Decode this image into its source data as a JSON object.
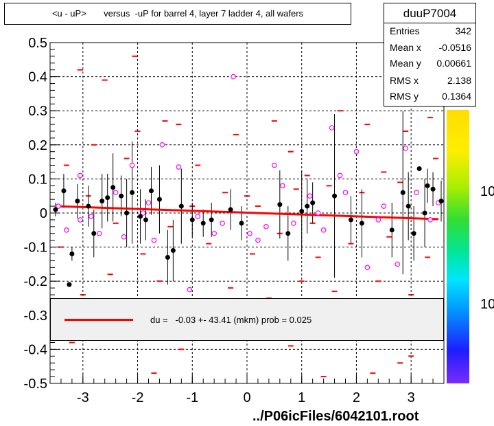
{
  "title": "<u - uP>       versus  -uP for barrel 4, layer 7 ladder 4, all wafers",
  "stats": {
    "name": "duuP7004",
    "rows": [
      {
        "label": "Entries",
        "value": "342"
      },
      {
        "label": "Mean x",
        "value": "-0.0516"
      },
      {
        "label": "Mean y",
        "value": "0.00661"
      },
      {
        "label": "RMS x",
        "value": "2.138"
      },
      {
        "label": "RMS y",
        "value": "0.1364"
      }
    ]
  },
  "legend": {
    "text": "du =   -0.03 +- 43.41 (mkm) prob = 0.025",
    "color": "#ff0000"
  },
  "footer": "../P06icFiles/6042101.root",
  "colors": {
    "profile": "#000000",
    "hist": "#ff0000",
    "markers": "#ff00ff",
    "fit": "#ff0000"
  },
  "colorbar_labels": [
    "10",
    "10"
  ],
  "chart_data": {
    "type": "scatter",
    "title": "<u - uP>       versus  -uP for barrel 4, layer 7 ladder 4, all wafers",
    "xlim": [
      -3.6,
      3.6
    ],
    "ylim": [
      -0.5,
      0.5
    ],
    "x_ticks": [
      "-3",
      "-2",
      "-1",
      "0",
      "1",
      "2",
      "3"
    ],
    "y_ticks": [
      "-0.5",
      "-0.4",
      "-0.3",
      "-0.2",
      "-0.1",
      "0",
      "0.1",
      "0.2",
      "0.3",
      "0.4",
      "0.5"
    ],
    "grid": true,
    "fit_line": {
      "x": [
        -3.5,
        3.5
      ],
      "y": [
        0.02,
        -0.018
      ]
    },
    "profile_points": [
      {
        "x": -3.5,
        "y": 0.01,
        "e": 0.02
      },
      {
        "x": -3.35,
        "y": 0.065,
        "e": 0.05
      },
      {
        "x": -3.25,
        "y": -0.21,
        "e": 0.0
      },
      {
        "x": -3.2,
        "y": -0.12,
        "e": 0.02
      },
      {
        "x": -3.1,
        "y": 0.035,
        "e": 0.05
      },
      {
        "x": -2.9,
        "y": 0.02,
        "e": 0.06
      },
      {
        "x": -2.8,
        "y": -0.06,
        "e": 0.07
      },
      {
        "x": -2.65,
        "y": 0.035,
        "e": 0.08
      },
      {
        "x": -2.55,
        "y": 0.045,
        "e": 0.07
      },
      {
        "x": -2.45,
        "y": 0.075,
        "e": 0.1
      },
      {
        "x": -2.3,
        "y": 0.05,
        "e": 0.06
      },
      {
        "x": -2.2,
        "y": 0.0,
        "e": 0.1
      },
      {
        "x": -2.1,
        "y": 0.06,
        "e": 0.15
      },
      {
        "x": -1.95,
        "y": -0.01,
        "e": 0.08
      },
      {
        "x": -1.85,
        "y": -0.02,
        "e": 0.06
      },
      {
        "x": -1.75,
        "y": 0.065,
        "e": 0.07
      },
      {
        "x": -1.6,
        "y": 0.04,
        "e": 0.1
      },
      {
        "x": -1.45,
        "y": -0.13,
        "e": 0.08
      },
      {
        "x": -1.35,
        "y": -0.11,
        "e": 0.09
      },
      {
        "x": -1.2,
        "y": 0.02,
        "e": 0.11
      },
      {
        "x": -1.0,
        "y": -0.02,
        "e": 0.05
      },
      {
        "x": -0.8,
        "y": -0.03,
        "e": 0.04
      },
      {
        "x": -0.65,
        "y": -0.02,
        "e": 0.05
      },
      {
        "x": -0.3,
        "y": 0.01,
        "e": 0.06
      },
      {
        "x": -0.1,
        "y": -0.03,
        "e": 0.05
      },
      {
        "x": 0.6,
        "y": 0.025,
        "e": 0.1
      },
      {
        "x": 0.75,
        "y": -0.06,
        "e": 0.08
      },
      {
        "x": 1.0,
        "y": 0.005,
        "e": 0.12
      },
      {
        "x": 1.1,
        "y": 0.02,
        "e": 0.08
      },
      {
        "x": 1.2,
        "y": 0.03,
        "e": 0.06
      },
      {
        "x": 1.6,
        "y": 0.05,
        "e": 0.24
      },
      {
        "x": 1.9,
        "y": -0.02,
        "e": 0.07
      },
      {
        "x": 2.1,
        "y": -0.03,
        "e": 0.1
      },
      {
        "x": 2.65,
        "y": -0.05,
        "e": 0.08
      },
      {
        "x": 2.85,
        "y": 0.06,
        "e": 0.24
      },
      {
        "x": 2.95,
        "y": 0.02,
        "e": 0.1
      },
      {
        "x": 3.05,
        "y": -0.06,
        "e": 0.08
      },
      {
        "x": 3.15,
        "y": 0.13,
        "e": 0.0
      },
      {
        "x": 3.25,
        "y": 0.0,
        "e": 0.1
      },
      {
        "x": 3.3,
        "y": 0.08,
        "e": 0.05
      },
      {
        "x": 3.4,
        "y": 0.07,
        "e": 0.05
      },
      {
        "x": 3.55,
        "y": 0.035,
        "e": 0.06
      }
    ],
    "open_markers": [
      {
        "x": -3.45,
        "y": 0.02
      },
      {
        "x": -3.3,
        "y": -0.05
      },
      {
        "x": -3.05,
        "y": 0.11
      },
      {
        "x": -3.05,
        "y": -0.02
      },
      {
        "x": -2.85,
        "y": -0.01
      },
      {
        "x": -2.7,
        "y": -0.06
      },
      {
        "x": -2.4,
        "y": 0.06
      },
      {
        "x": -2.25,
        "y": -0.07
      },
      {
        "x": -2.1,
        "y": 0.14
      },
      {
        "x": -1.9,
        "y": 0.0
      },
      {
        "x": -1.8,
        "y": 0.03
      },
      {
        "x": -1.7,
        "y": -0.08
      },
      {
        "x": -1.55,
        "y": 0.2
      },
      {
        "x": -1.25,
        "y": 0.135
      },
      {
        "x": -1.05,
        "y": -0.225
      },
      {
        "x": -0.9,
        "y": -0.01
      },
      {
        "x": -0.6,
        "y": -0.06
      },
      {
        "x": -0.45,
        "y": -0.03
      },
      {
        "x": -0.25,
        "y": 0.4
      },
      {
        "x": 0.05,
        "y": -0.06
      },
      {
        "x": 0.2,
        "y": -0.08
      },
      {
        "x": 0.35,
        "y": -0.04
      },
      {
        "x": 0.5,
        "y": 0.14
      },
      {
        "x": 0.65,
        "y": 0.08
      },
      {
        "x": 0.85,
        "y": -0.03
      },
      {
        "x": 1.15,
        "y": 0.05
      },
      {
        "x": 1.3,
        "y": 0.0
      },
      {
        "x": 1.4,
        "y": -0.05
      },
      {
        "x": 1.55,
        "y": 0.25
      },
      {
        "x": 1.7,
        "y": 0.11
      },
      {
        "x": 1.8,
        "y": 0.06
      },
      {
        "x": 2.0,
        "y": 0.18
      },
      {
        "x": 2.2,
        "y": -0.16
      },
      {
        "x": 2.4,
        "y": -0.02
      },
      {
        "x": 2.5,
        "y": 0.02
      },
      {
        "x": 2.75,
        "y": -0.15
      },
      {
        "x": 2.9,
        "y": 0.19
      },
      {
        "x": 3.1,
        "y": 0.06
      },
      {
        "x": 3.35,
        "y": -0.02
      },
      {
        "x": 3.5,
        "y": 0.03
      }
    ],
    "hist_marks": [
      {
        "x": -2.05,
        "y": 0.46
      },
      {
        "x": -3.05,
        "y": 0.42
      },
      {
        "x": -2.6,
        "y": 0.39
      },
      {
        "x": -1.5,
        "y": 0.27
      },
      {
        "x": -2.0,
        "y": 0.24
      },
      {
        "x": -1.25,
        "y": 0.26
      },
      {
        "x": -2.8,
        "y": 0.2
      },
      {
        "x": -0.9,
        "y": 0.14
      },
      {
        "x": -0.2,
        "y": 0.23
      },
      {
        "x": 0.5,
        "y": 0.27
      },
      {
        "x": 0.8,
        "y": 0.18
      },
      {
        "x": 1.1,
        "y": 0.11
      },
      {
        "x": 1.7,
        "y": 0.3
      },
      {
        "x": 2.2,
        "y": 0.26
      },
      {
        "x": 2.9,
        "y": 0.24
      },
      {
        "x": 3.2,
        "y": 0.35
      },
      {
        "x": -3.3,
        "y": 0.14
      },
      {
        "x": -2.9,
        "y": 0.05
      },
      {
        "x": -2.4,
        "y": -0.03
      },
      {
        "x": -1.9,
        "y": -0.12
      },
      {
        "x": -1.4,
        "y": -0.04
      },
      {
        "x": -0.7,
        "y": -0.09
      },
      {
        "x": 0.1,
        "y": -0.12
      },
      {
        "x": 0.6,
        "y": -0.06
      },
      {
        "x": 1.3,
        "y": -0.13
      },
      {
        "x": 1.9,
        "y": -0.09
      },
      {
        "x": 2.6,
        "y": -0.07
      },
      {
        "x": 3.3,
        "y": -0.13
      },
      {
        "x": -3.0,
        "y": -0.24
      },
      {
        "x": -2.5,
        "y": -0.18
      },
      {
        "x": -1.6,
        "y": -0.2
      },
      {
        "x": -0.3,
        "y": -0.22
      },
      {
        "x": 0.4,
        "y": -0.25
      },
      {
        "x": 1.0,
        "y": -0.2
      },
      {
        "x": 1.6,
        "y": -0.23
      },
      {
        "x": 2.4,
        "y": -0.2
      },
      {
        "x": 3.0,
        "y": -0.24
      },
      {
        "x": -3.2,
        "y": -0.38
      },
      {
        "x": -1.2,
        "y": -0.4
      },
      {
        "x": 0.8,
        "y": -0.39
      },
      {
        "x": 2.8,
        "y": -0.44
      },
      {
        "x": 2.3,
        "y": -0.47
      },
      {
        "x": -1.7,
        "y": -0.47
      },
      {
        "x": 1.4,
        "y": -0.48
      },
      {
        "x": 3.0,
        "y": -0.42
      },
      {
        "x": -0.4,
        "y": 0.06
      },
      {
        "x": 0.2,
        "y": 0.02
      },
      {
        "x": 0.9,
        "y": 0.07
      },
      {
        "x": 1.5,
        "y": 0.08
      },
      {
        "x": 2.1,
        "y": 0.06
      },
      {
        "x": 2.8,
        "y": 0.09
      },
      {
        "x": 3.45,
        "y": 0.16
      },
      {
        "x": -3.4,
        "y": -0.1
      },
      {
        "x": -2.2,
        "y": 0.16
      },
      {
        "x": -1.0,
        "y": 0.02
      },
      {
        "x": 0.0,
        "y": 0.05
      },
      {
        "x": 1.2,
        "y": -0.03
      },
      {
        "x": 2.5,
        "y": 0.12
      },
      {
        "x": 3.35,
        "y": 0.28
      }
    ]
  }
}
